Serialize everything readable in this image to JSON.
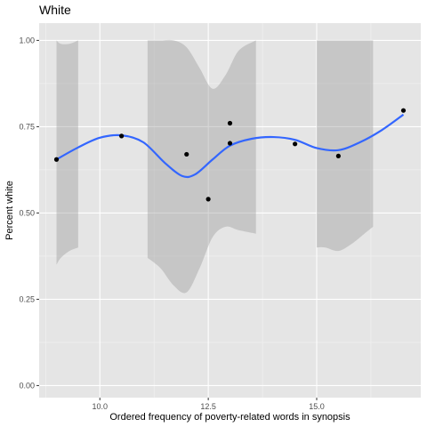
{
  "chart_data": {
    "type": "scatter",
    "title": "White",
    "xlabel": "Ordered frequency of poverty-related words in synopsis",
    "ylabel": "Percent white",
    "xlim": [
      8.6,
      17.4
    ],
    "ylim": [
      -0.035,
      1.05
    ],
    "x_ticks": [
      {
        "value": 10.0,
        "label": "10.0"
      },
      {
        "value": 12.5,
        "label": "12.5"
      },
      {
        "value": 15.0,
        "label": "15.0"
      }
    ],
    "y_ticks": [
      {
        "value": 0.0,
        "label": "0.00"
      },
      {
        "value": 0.25,
        "label": "0.25"
      },
      {
        "value": 0.5,
        "label": "0.50"
      },
      {
        "value": 0.75,
        "label": "0.75"
      },
      {
        "value": 1.0,
        "label": "1.00"
      }
    ],
    "grid": true,
    "points": [
      {
        "x": 9.0,
        "y": 0.655
      },
      {
        "x": 10.5,
        "y": 0.723
      },
      {
        "x": 12.0,
        "y": 0.67
      },
      {
        "x": 12.5,
        "y": 0.54
      },
      {
        "x": 13.0,
        "y": 0.76
      },
      {
        "x": 13.0,
        "y": 0.702
      },
      {
        "x": 14.5,
        "y": 0.7
      },
      {
        "x": 15.5,
        "y": 0.665
      },
      {
        "x": 17.0,
        "y": 0.797
      }
    ],
    "smooth_line": {
      "color": "#3366FF",
      "x": [
        9.0,
        9.5,
        10.0,
        10.5,
        11.0,
        11.5,
        11.9,
        12.2,
        12.6,
        13.0,
        13.5,
        14.0,
        14.5,
        15.0,
        15.5,
        16.0,
        16.5,
        17.0
      ],
      "y": [
        0.655,
        0.69,
        0.718,
        0.725,
        0.705,
        0.645,
        0.607,
        0.612,
        0.655,
        0.695,
        0.715,
        0.72,
        0.712,
        0.688,
        0.682,
        0.705,
        0.74,
        0.785
      ]
    },
    "confidence_bands": [
      {
        "x": [
          9.0,
          9.1,
          9.3,
          9.5
        ],
        "upper": [
          1.0,
          0.99,
          0.99,
          1.0
        ],
        "lower": [
          0.35,
          0.37,
          0.39,
          0.4
        ]
      },
      {
        "x": [
          11.1,
          11.4,
          11.7,
          12.0,
          12.3,
          12.6,
          12.9,
          13.2,
          13.6
        ],
        "upper": [
          1.0,
          1.0,
          1.0,
          0.98,
          0.92,
          0.86,
          0.9,
          0.97,
          1.0
        ],
        "lower": [
          0.37,
          0.34,
          0.29,
          0.27,
          0.34,
          0.43,
          0.46,
          0.45,
          0.44
        ]
      },
      {
        "x": [
          15.0,
          15.2,
          15.5,
          15.8,
          16.1,
          16.3
        ],
        "upper": [
          1.0,
          1.0,
          1.0,
          1.0,
          1.0,
          1.0
        ],
        "lower": [
          0.4,
          0.4,
          0.39,
          0.41,
          0.44,
          0.46
        ]
      }
    ],
    "colors": {
      "panel": "#E5E5E5",
      "grid_major": "#FFFFFF",
      "point": "#000000",
      "band": "#999999"
    }
  }
}
